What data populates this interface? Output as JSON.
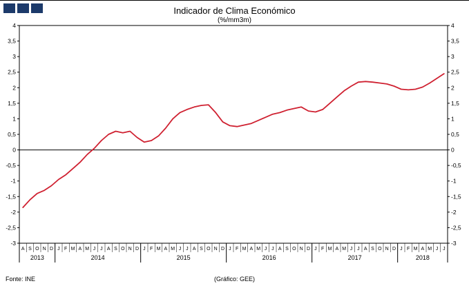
{
  "logo": {
    "color": "#1c3a6a",
    "square_count": 3
  },
  "header": {
    "title": "Indicador de Clima Económico",
    "subtitle": "(%/mm3m)"
  },
  "footer": {
    "source": "Fonte: INE",
    "credit": "(Gráfico: GEE)"
  },
  "chart_data": {
    "type": "line",
    "title": "Indicador de Clima Económico",
    "subtitle": "(%/mm3m)",
    "ylabel": "",
    "xlabel": "",
    "line_color": "#cf2030",
    "axis_color": "#000000",
    "grid": false,
    "legend": "none",
    "ylim": [
      -3,
      4
    ],
    "ytick_values": [
      4,
      3.5,
      3,
      2.5,
      2,
      1.5,
      1,
      0.5,
      0,
      -0.5,
      -1,
      -1.5,
      -2,
      -2.5,
      -3
    ],
    "ytick_labels": [
      "4",
      "3,5",
      "3",
      "2,5",
      "2",
      "1,5",
      "1",
      "0,5",
      "0",
      "-0,5",
      "-1",
      "-1,5",
      "-2",
      "-2,5",
      "-3"
    ],
    "years": [
      {
        "label": "2013",
        "months": [
          "A",
          "S",
          "O",
          "N",
          "D"
        ],
        "values": [
          -1.85,
          -1.6,
          -1.4,
          -1.3,
          -1.15
        ]
      },
      {
        "label": "2014",
        "months": [
          "J",
          "F",
          "M",
          "A",
          "M",
          "J",
          "J",
          "A",
          "S",
          "O",
          "N",
          "D"
        ],
        "values": [
          -0.95,
          -0.8,
          -0.6,
          -0.4,
          -0.15,
          0.05,
          0.3,
          0.5,
          0.6,
          0.55,
          0.6,
          0.4
        ]
      },
      {
        "label": "2015",
        "months": [
          "J",
          "F",
          "M",
          "A",
          "M",
          "J",
          "J",
          "A",
          "S",
          "O",
          "N",
          "D"
        ],
        "values": [
          0.25,
          0.3,
          0.45,
          0.7,
          1.0,
          1.2,
          1.3,
          1.38,
          1.43,
          1.45,
          1.2,
          0.9
        ]
      },
      {
        "label": "2016",
        "months": [
          "J",
          "F",
          "M",
          "A",
          "M",
          "J",
          "J",
          "A",
          "S",
          "O",
          "N",
          "D"
        ],
        "values": [
          0.78,
          0.75,
          0.8,
          0.85,
          0.95,
          1.05,
          1.15,
          1.2,
          1.28,
          1.33,
          1.38,
          1.25
        ]
      },
      {
        "label": "2017",
        "months": [
          "J",
          "F",
          "M",
          "A",
          "M",
          "J",
          "J",
          "A",
          "S",
          "O",
          "N",
          "D"
        ],
        "values": [
          1.22,
          1.3,
          1.5,
          1.7,
          1.9,
          2.05,
          2.18,
          2.2,
          2.18,
          2.15,
          2.12,
          2.05
        ]
      },
      {
        "label": "2018",
        "months": [
          "J",
          "F",
          "M",
          "A",
          "M",
          "J",
          "J"
        ],
        "values": [
          1.95,
          1.93,
          1.95,
          2.02,
          2.15,
          2.3,
          2.45
        ]
      }
    ]
  }
}
